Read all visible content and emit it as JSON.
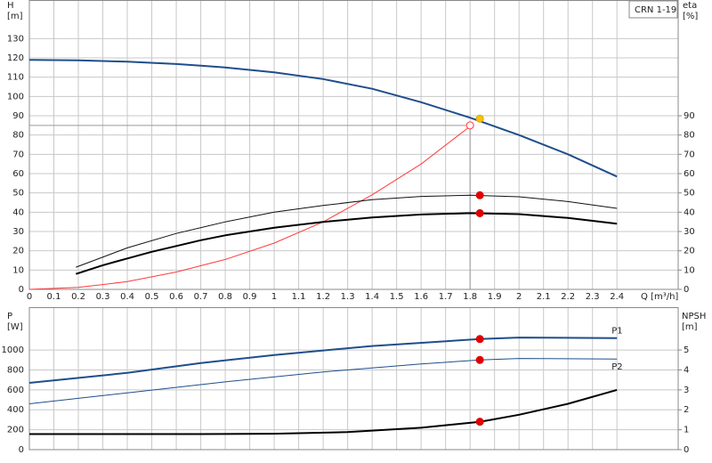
{
  "chart_data": [
    {
      "type": "line",
      "name_box": "CRN 1-19",
      "ylabel": "H",
      "yunit": "[m]",
      "y2label": "eta",
      "y2unit": "[%]",
      "xlabel": "Q [m³/h]",
      "xlim": [
        0,
        2.65
      ],
      "xticks": [
        0,
        0.1,
        0.2,
        0.3,
        0.4,
        0.5,
        0.6,
        0.7,
        0.8,
        0.9,
        1,
        1.1,
        1.2,
        1.3,
        1.4,
        1.5,
        1.6,
        1.7,
        1.8,
        1.9,
        2,
        2.1,
        2.2,
        2.3,
        2.4
      ],
      "ylim": [
        0,
        150
      ],
      "yticks": [
        0,
        10,
        20,
        30,
        40,
        50,
        60,
        70,
        80,
        90,
        100,
        110,
        120,
        130
      ],
      "y2lim": [
        0,
        150
      ],
      "y2ticks": [
        0,
        10,
        20,
        30,
        40,
        50,
        60,
        70,
        80,
        90
      ],
      "grid": true,
      "xtick_labels": true,
      "reference_lines": {
        "x": 1.8,
        "y": 85,
        "color": "#999999"
      },
      "series": [
        {
          "color": "#1f4e8c",
          "width": 2,
          "x": [
            0,
            0.2,
            0.4,
            0.6,
            0.7,
            0.8,
            1.0,
            1.2,
            1.4,
            1.6,
            1.8,
            2.0,
            2.2,
            2.4
          ],
          "values": [
            119,
            118.7,
            118,
            116.8,
            116,
            115,
            112.5,
            109,
            104,
            97,
            89,
            80,
            70,
            58.5
          ]
        },
        {
          "color": "#ff3b3b",
          "width": 1,
          "x": [
            0,
            0.2,
            0.4,
            0.6,
            0.8,
            1.0,
            1.2,
            1.4,
            1.6,
            1.8
          ],
          "values": [
            0,
            1,
            4,
            9,
            15.5,
            24,
            35,
            49,
            65,
            84.5
          ]
        },
        {
          "color": "#111111",
          "width": 1,
          "axis": "y2",
          "x": [
            0.19,
            0.4,
            0.6,
            0.8,
            1.0,
            1.2,
            1.4,
            1.6,
            1.8,
            2.0,
            2.2,
            2.4
          ],
          "values": [
            11.5,
            21.5,
            29,
            35,
            40,
            43.5,
            46.5,
            48.2,
            48.8,
            48,
            45.5,
            42
          ]
        },
        {
          "color": "#000000",
          "width": 2,
          "axis": "y2",
          "x": [
            0.19,
            0.3,
            0.4,
            0.5,
            0.6,
            0.7,
            0.8,
            1.0,
            1.2,
            1.4,
            1.6,
            1.8,
            2.0,
            2.2,
            2.4
          ],
          "values": [
            8,
            12.5,
            16,
            19.5,
            22.5,
            25.5,
            28,
            32,
            35,
            37.3,
            38.8,
            39.5,
            39,
            37,
            34
          ]
        },
        {
          "color": "#f5c400",
          "marker": "dot",
          "x": [
            1.84
          ],
          "values": [
            88.5
          ]
        },
        {
          "color": "#ff3b3b",
          "marker": "ring",
          "x": [
            1.8
          ],
          "values": [
            85
          ]
        },
        {
          "color": "#e00000",
          "marker": "dot",
          "axis": "y2",
          "x": [
            1.84,
            1.84
          ],
          "values": [
            48.8,
            39.5
          ]
        }
      ]
    },
    {
      "type": "line",
      "ylabel": "P",
      "yunit": "[W]",
      "y2label": "NPSH",
      "y2unit": "[m]",
      "xlim": [
        0,
        2.65
      ],
      "xticks": [
        0,
        0.1,
        0.2,
        0.3,
        0.4,
        0.5,
        0.6,
        0.7,
        0.8,
        0.9,
        1,
        1.1,
        1.2,
        1.3,
        1.4,
        1.5,
        1.6,
        1.7,
        1.8,
        1.9,
        2,
        2.1,
        2.2,
        2.3,
        2.4
      ],
      "ylim": [
        0,
        1430
      ],
      "yticks": [
        0,
        200,
        400,
        600,
        800,
        1000
      ],
      "y2lim": [
        0,
        7.15
      ],
      "y2ticks": [
        0,
        1,
        2,
        3,
        4,
        5
      ],
      "grid": true,
      "xtick_labels": false,
      "series": [
        {
          "name": "P1",
          "color": "#1f4e8c",
          "width": 2,
          "x": [
            0,
            0.4,
            0.7,
            1.0,
            1.4,
            1.84,
            2.0,
            2.4
          ],
          "values": [
            670,
            770,
            870,
            950,
            1040,
            1110,
            1125,
            1120
          ]
        },
        {
          "name": "P2",
          "color": "#1f4e8c",
          "width": 1,
          "x": [
            0,
            0.4,
            0.8,
            1.2,
            1.6,
            1.84,
            2.0,
            2.4
          ],
          "values": [
            460,
            570,
            680,
            780,
            860,
            900,
            915,
            910
          ]
        },
        {
          "color": "#000000",
          "width": 2,
          "axis": "y2",
          "x": [
            0,
            0.7,
            1.0,
            1.3,
            1.6,
            1.84,
            2.0,
            2.2,
            2.4
          ],
          "values": [
            0.78,
            0.78,
            0.8,
            0.88,
            1.1,
            1.4,
            1.75,
            2.3,
            3.0
          ]
        },
        {
          "color": "#e00000",
          "marker": "dot",
          "x": [
            1.84,
            1.84
          ],
          "values": [
            1110,
            900
          ]
        },
        {
          "color": "#e00000",
          "marker": "dot",
          "axis": "y2",
          "x": [
            1.84
          ],
          "values": [
            1.4
          ]
        }
      ]
    }
  ]
}
